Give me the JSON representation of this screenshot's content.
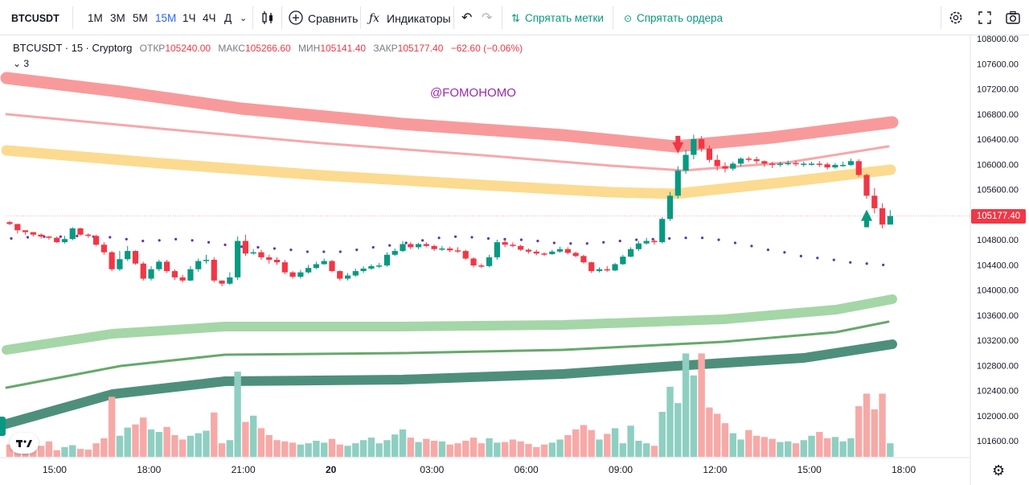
{
  "toolbar": {
    "symbol": "BTCUSDT",
    "timeframes": [
      "1М",
      "3М",
      "5М",
      "15М",
      "1Ч",
      "4Ч",
      "Д"
    ],
    "active_timeframe": "15М",
    "compare_label": "Сравнить",
    "indicators_label": "Индикаторы",
    "hide_marks_label": "Спрятать метки",
    "hide_orders_label": "Спрятать ордера"
  },
  "legend": {
    "symbol": "BTCUSDT",
    "interval": "15",
    "source": "Cryptorg",
    "open_label": "ОТКР",
    "open": "105240.00",
    "high_label": "МАКС",
    "high": "105266.60",
    "low_label": "МИН",
    "low": "105141.40",
    "close_label": "ЗАКР",
    "close": "105177.40",
    "change": "−62.60 (−0.06%)",
    "indicator_count": "3"
  },
  "watermark": "@FOMOHOMO",
  "last_price_tag": "105177.40",
  "colors": {
    "up": "#089981",
    "down": "#f23645",
    "accent": "#2962ff",
    "watermark": "#9c27b0"
  },
  "chart_data": {
    "type": "candlestick",
    "ylim": [
      101300,
      108100
    ],
    "y_ticks": [
      "108000.00",
      "107600.00",
      "107200.00",
      "106800.00",
      "106400.00",
      "106000.00",
      "105600.00",
      "105200.00",
      "104800.00",
      "104400.00",
      "104000.00",
      "103600.00",
      "103200.00",
      "102800.00",
      "102400.00",
      "102000.00",
      "101600.00"
    ],
    "x_ticks": [
      {
        "label": "15:00",
        "i": 5
      },
      {
        "label": "18:00",
        "i": 17
      },
      {
        "label": "21:00",
        "i": 29
      },
      {
        "label": "20",
        "i": 41
      },
      {
        "label": "03:00",
        "i": 53
      },
      {
        "label": "06:00",
        "i": 65
      },
      {
        "label": "09:00",
        "i": 77
      },
      {
        "label": "12:00",
        "i": 89
      },
      {
        "label": "15:00",
        "i": 101
      },
      {
        "label": "18:00",
        "i": 113
      }
    ],
    "closes": [
      105050,
      104950,
      104920,
      104880,
      104850,
      104830,
      104760,
      104810,
      104980,
      104880,
      104860,
      104720,
      104600,
      104330,
      104490,
      104620,
      104420,
      104180,
      104330,
      104450,
      104300,
      104200,
      104150,
      104330,
      104460,
      104480,
      104150,
      104100,
      104200,
      104780,
      104580,
      104600,
      104520,
      104480,
      104440,
      104280,
      104210,
      104280,
      104350,
      104410,
      104460,
      104300,
      104180,
      104230,
      104300,
      104340,
      104380,
      104390,
      104560,
      104620,
      104730,
      104680,
      104730,
      104700,
      104650,
      104660,
      104630,
      104620,
      104500,
      104390,
      104380,
      104520,
      104760,
      104720,
      104700,
      104640,
      104610,
      104580,
      104570,
      104610,
      104650,
      104590,
      104540,
      104440,
      104300,
      104330,
      104310,
      104410,
      104530,
      104650,
      104740,
      104780,
      104760,
      105130,
      105500,
      105900,
      106150,
      106400,
      106250,
      106070,
      105970,
      105930,
      106010,
      106090,
      106080,
      106050,
      106010,
      105990,
      106010,
      106020,
      106000,
      106010,
      106010,
      106000,
      105950,
      105990,
      105990,
      106050,
      105830,
      105500,
      105300,
      105040,
      105177
    ],
    "highs": [
      105100,
      105000,
      104950,
      104920,
      104900,
      104860,
      104850,
      104860,
      105000,
      104990,
      104900,
      104880,
      104760,
      104620,
      104620,
      104700,
      104630,
      104450,
      104380,
      104480,
      104480,
      104330,
      104240,
      104380,
      104500,
      104560,
      104520,
      104150,
      104280,
      104850,
      104880,
      104650,
      104640,
      104560,
      104520,
      104480,
      104300,
      104320,
      104400,
      104450,
      104500,
      104480,
      104310,
      104270,
      104340,
      104380,
      104410,
      104430,
      104600,
      104660,
      104780,
      104760,
      104750,
      104760,
      104720,
      104700,
      104690,
      104680,
      104640,
      104520,
      104420,
      104560,
      104800,
      104800,
      104760,
      104720,
      104660,
      104640,
      104600,
      104640,
      104690,
      104680,
      104610,
      104560,
      104450,
      104360,
      104380,
      104430,
      104560,
      104680,
      104780,
      104830,
      104800,
      105160,
      105560,
      105970,
      106230,
      106470,
      106450,
      106300,
      106150,
      106030,
      106040,
      106110,
      106120,
      106120,
      106060,
      106040,
      106040,
      106060,
      106060,
      106040,
      106040,
      106050,
      106030,
      106020,
      106040,
      106090,
      106080,
      105850,
      105620,
      105380,
      105270
    ],
    "lows": [
      105030,
      104900,
      104880,
      104850,
      104820,
      104800,
      104750,
      104740,
      104790,
      104860,
      104830,
      104700,
      104560,
      104300,
      104300,
      104460,
      104400,
      104150,
      104150,
      104300,
      104270,
      104160,
      104120,
      104140,
      104290,
      104420,
      104120,
      104060,
      104080,
      104160,
      104540,
      104560,
      104480,
      104420,
      104400,
      104250,
      104180,
      104180,
      104260,
      104330,
      104400,
      104280,
      104150,
      104150,
      104210,
      104270,
      104320,
      104350,
      104370,
      104540,
      104600,
      104650,
      104650,
      104680,
      104620,
      104620,
      104600,
      104590,
      104480,
      104360,
      104350,
      104360,
      104480,
      104680,
      104680,
      104620,
      104580,
      104550,
      104540,
      104560,
      104590,
      104570,
      104520,
      104420,
      104270,
      104280,
      104290,
      104300,
      104400,
      104520,
      104620,
      104720,
      104720,
      104740,
      105100,
      105460,
      105850,
      106080,
      106200,
      106030,
      105900,
      105870,
      105900,
      105970,
      106040,
      106010,
      105960,
      105940,
      105960,
      105980,
      105970,
      105960,
      105980,
      105960,
      105920,
      105930,
      105960,
      105970,
      105800,
      105450,
      105220,
      104980,
      105140
    ],
    "volume_scale": [
      101300,
      103000
    ],
    "volumes": [
      101540,
      101420,
      101450,
      101490,
      101520,
      101590,
      101450,
      101500,
      101530,
      101470,
      101460,
      101560,
      101640,
      102300,
      101680,
      101810,
      101860,
      101970,
      101780,
      101740,
      101820,
      101690,
      101620,
      101680,
      101720,
      101760,
      102050,
      101560,
      101610,
      102700,
      101900,
      102000,
      101800,
      101690,
      101610,
      101590,
      101570,
      101540,
      101560,
      101600,
      101570,
      101630,
      101540,
      101520,
      101560,
      101610,
      101650,
      101560,
      101610,
      101700,
      101780,
      101650,
      101580,
      101630,
      101600,
      101590,
      101540,
      101560,
      101600,
      101650,
      101560,
      101640,
      101570,
      101580,
      101620,
      101590,
      101550,
      101500,
      101540,
      101570,
      101620,
      101690,
      101780,
      101850,
      101770,
      101620,
      101710,
      101800,
      101560,
      101840,
      101600,
      101560,
      101520,
      102060,
      102460,
      102200,
      102990,
      102640,
      102990,
      102130,
      102030,
      101880,
      101720,
      101620,
      101770,
      101680,
      101660,
      101630,
      101580,
      101590,
      101560,
      101610,
      101680,
      101740,
      101640,
      101660,
      101590,
      101640,
      102150,
      102350,
      102100,
      102350,
      101560
    ]
  },
  "overlays": {
    "midline": {
      "type": "dotted",
      "values": [
        104870,
        104890,
        104900,
        104900,
        104910,
        104900,
        104890,
        104860,
        104830,
        104840,
        104860,
        104840,
        104810,
        104770,
        104740,
        104730,
        104710,
        104690,
        104660,
        104660,
        104660,
        104690,
        104730,
        104760,
        104800,
        104840,
        104880,
        104900,
        104890,
        104870,
        104860,
        104850,
        104830,
        104800,
        104790,
        104790,
        104810,
        104830,
        104850,
        104860,
        104870,
        104880,
        104880,
        104850,
        104800,
        104750,
        104690,
        104650,
        104590,
        104560,
        104530,
        104490,
        104470,
        104450
      ]
    }
  }
}
